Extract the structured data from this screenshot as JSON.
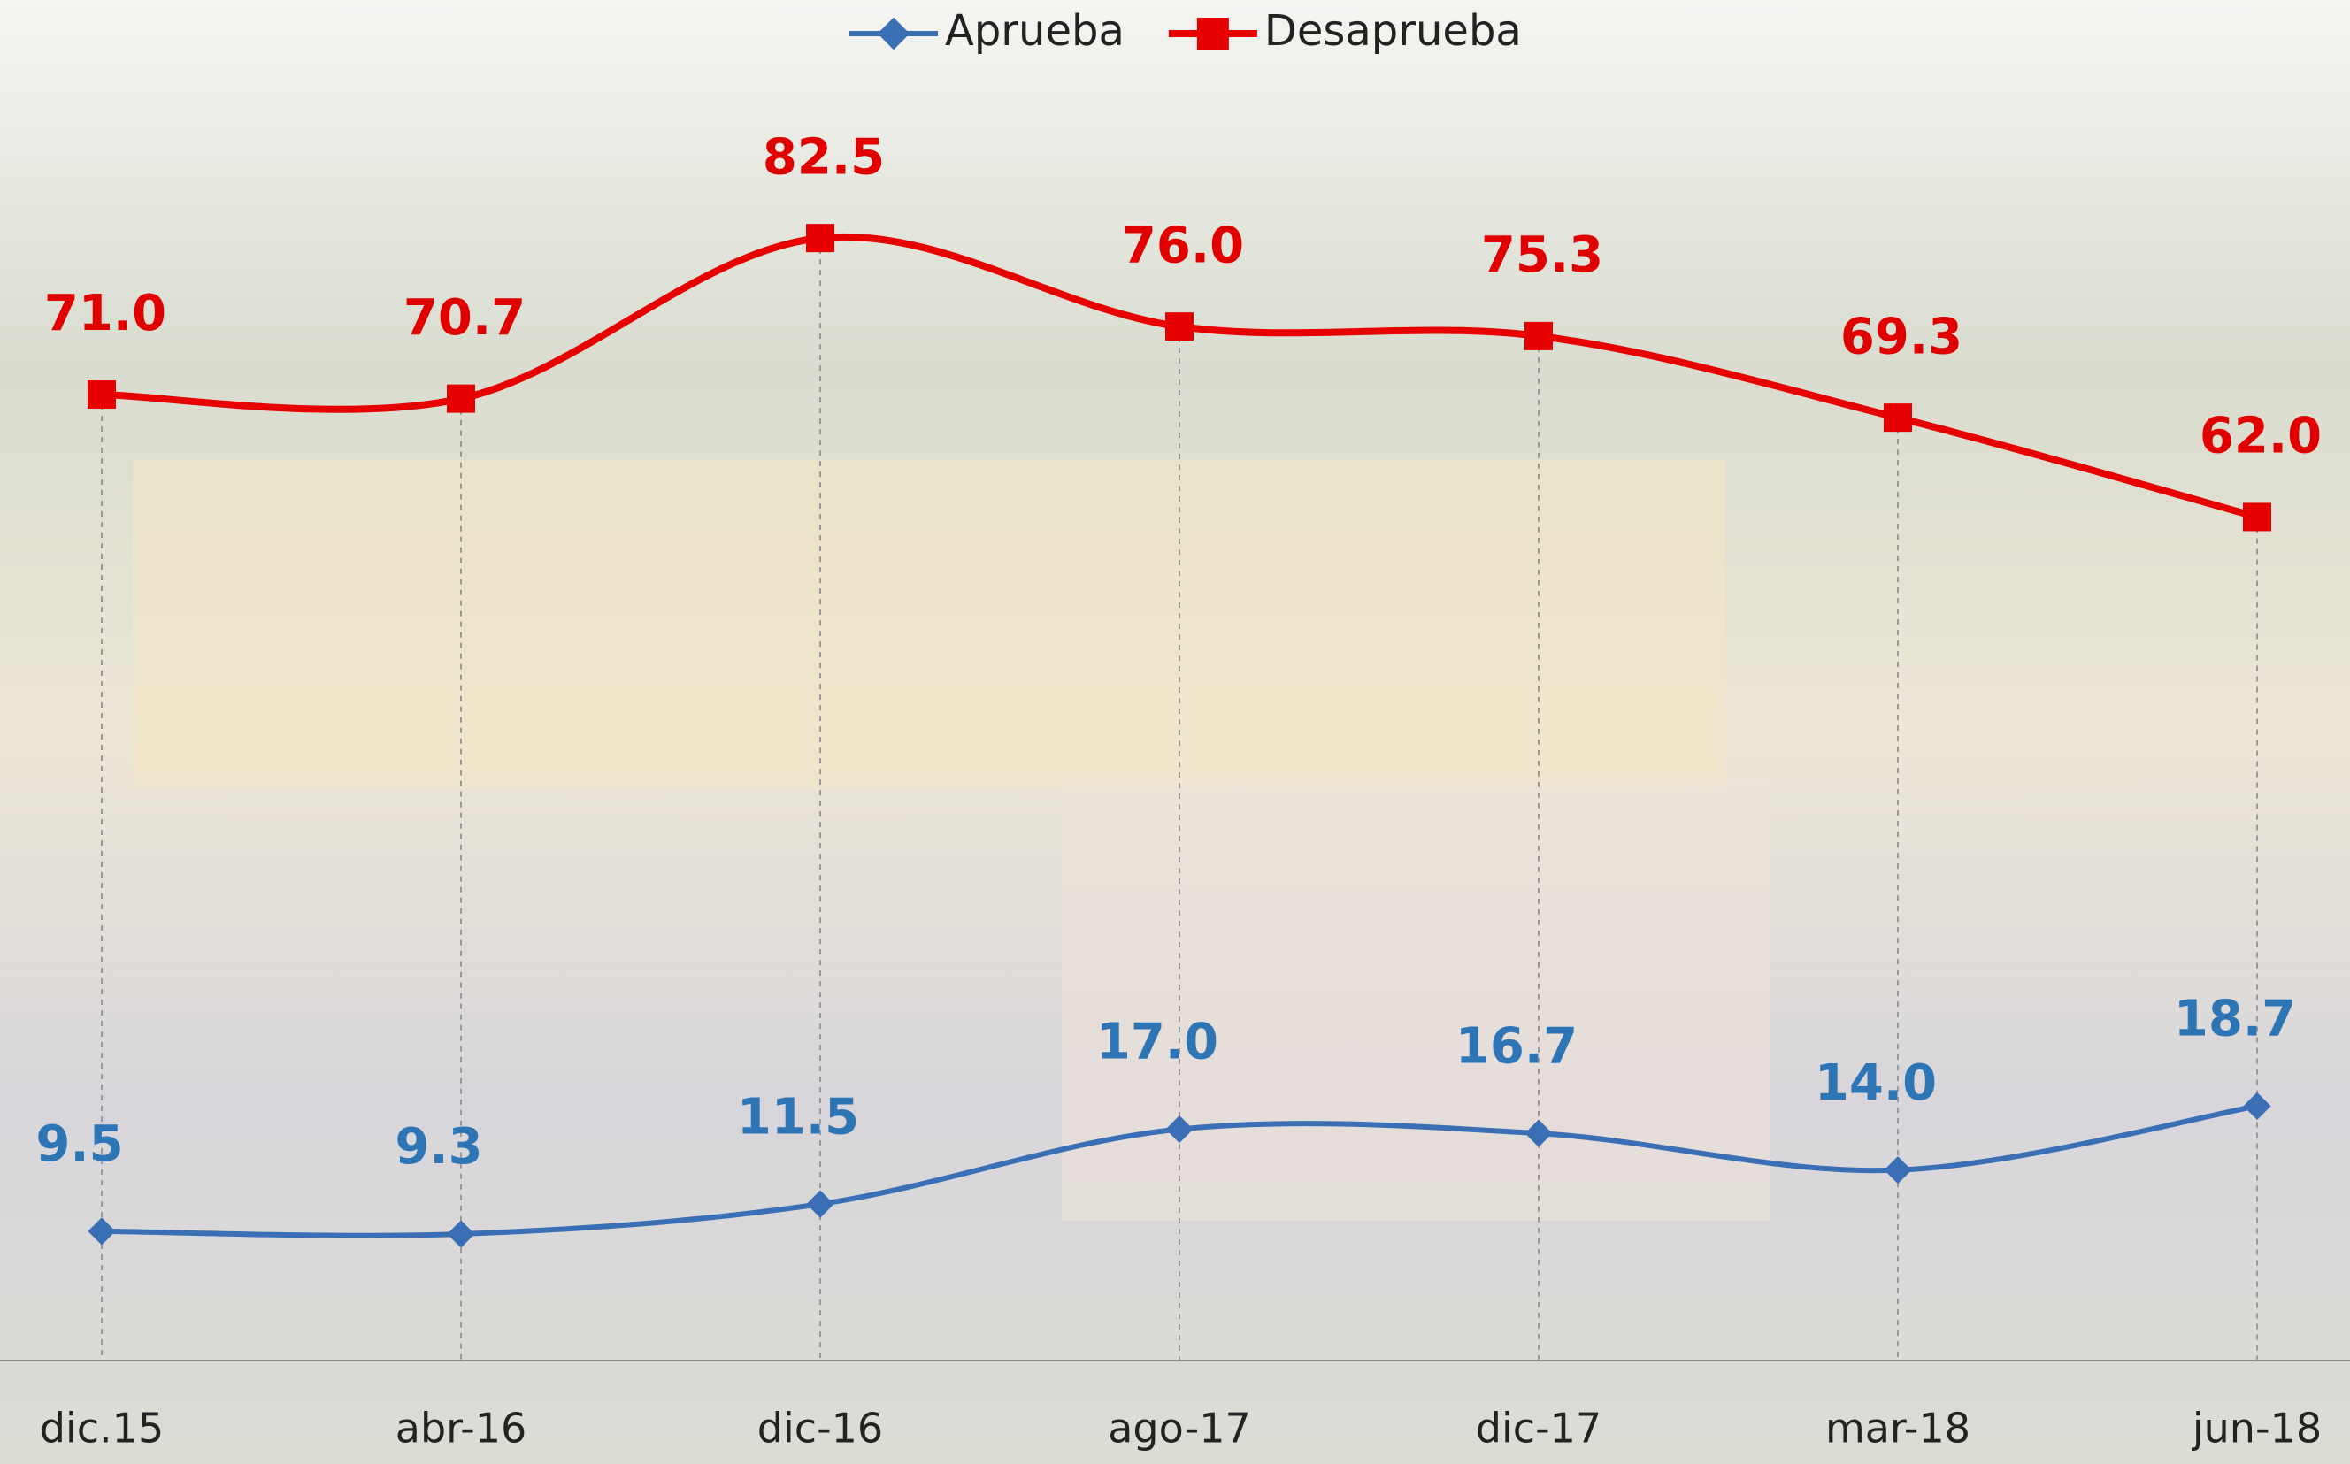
{
  "chart_data": {
    "type": "line",
    "categories": [
      "dic.15",
      "abr-16",
      "dic-16",
      "ago-17",
      "dic-17",
      "mar-18",
      "jun-18"
    ],
    "series": [
      {
        "name": "Aprueba",
        "color": "#3a6fb5",
        "label_color": "#2e75b6",
        "marker": "diamond",
        "values": [
          9.5,
          9.3,
          11.5,
          17.0,
          16.7,
          14.0,
          18.7
        ],
        "value_labels": [
          "9.5",
          "9.3",
          "11.5",
          "17.0",
          "16.7",
          "14.0",
          "18.7"
        ]
      },
      {
        "name": "Desaprueba",
        "color": "#e60000",
        "label_color": "#e00000",
        "marker": "square",
        "values": [
          71.0,
          70.7,
          82.5,
          76.0,
          75.3,
          69.3,
          62.0
        ],
        "value_labels": [
          "71.0",
          "70.7",
          "82.5",
          "76.0",
          "75.3",
          "69.3",
          "62.0"
        ]
      }
    ],
    "ylim": [
      0,
      100
    ],
    "smooth": true,
    "legend": "top"
  }
}
